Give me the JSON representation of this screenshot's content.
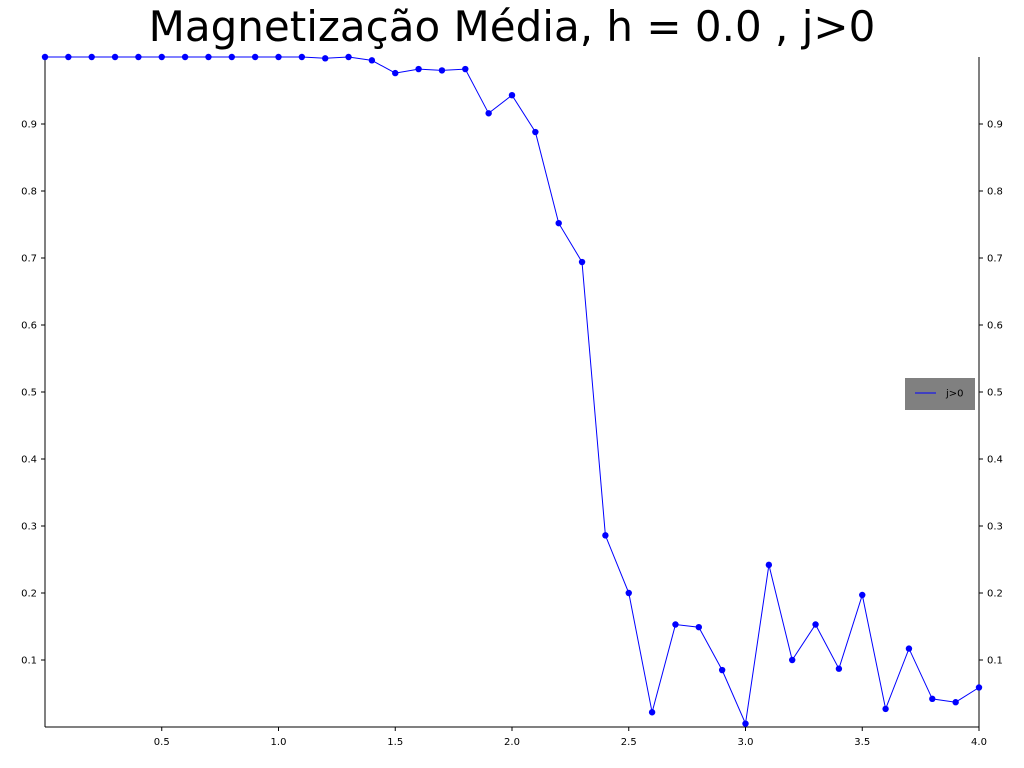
{
  "chart_data": {
    "type": "line",
    "title": "Magnetização Média, h = 0.0 , j>0",
    "xlabel": "",
    "ylabel": "",
    "xlim": [
      0.0,
      4.0
    ],
    "ylim": [
      0.0,
      1.0
    ],
    "x_ticks": [
      0.5,
      1.0,
      1.5,
      2.0,
      2.5,
      3.0,
      3.5,
      4.0
    ],
    "x_tick_labels": [
      "0.5",
      "1.0",
      "1.5",
      "2.0",
      "2.5",
      "3.0",
      "3.5",
      "4.0"
    ],
    "y_ticks": [
      0.1,
      0.2,
      0.3,
      0.4,
      0.5,
      0.6,
      0.7,
      0.8,
      0.9
    ],
    "y_tick_labels": [
      "0.1",
      "0.2",
      "0.3",
      "0.4",
      "0.5",
      "0.6",
      "0.7",
      "0.8",
      "0.9"
    ],
    "grid": false,
    "legend_position": "center-right",
    "series": [
      {
        "name": "j>0",
        "color": "#0000ff",
        "marker": "circle",
        "x": [
          0.0,
          0.1,
          0.2,
          0.3,
          0.4,
          0.5,
          0.6,
          0.7,
          0.8,
          0.9,
          1.0,
          1.1,
          1.2,
          1.3,
          1.4,
          1.5,
          1.6,
          1.7,
          1.8,
          1.9,
          2.0,
          2.1,
          2.2,
          2.3,
          2.4,
          2.5,
          2.6,
          2.7,
          2.8,
          2.9,
          3.0,
          3.1,
          3.2,
          3.3,
          3.4,
          3.5,
          3.6,
          3.7,
          3.8,
          3.9,
          4.0
        ],
        "values": [
          1.0,
          1.0,
          1.0,
          1.0,
          1.0,
          1.0,
          1.0,
          1.0,
          1.0,
          1.0,
          1.0,
          1.0,
          0.998,
          1.0,
          0.995,
          0.976,
          0.982,
          0.98,
          0.982,
          0.916,
          0.943,
          0.888,
          0.752,
          0.694,
          0.286,
          0.2,
          0.022,
          0.153,
          0.149,
          0.085,
          0.005,
          0.242,
          0.1,
          0.153,
          0.087,
          0.197,
          0.027,
          0.117,
          0.042,
          0.037,
          0.059
        ]
      }
    ]
  }
}
